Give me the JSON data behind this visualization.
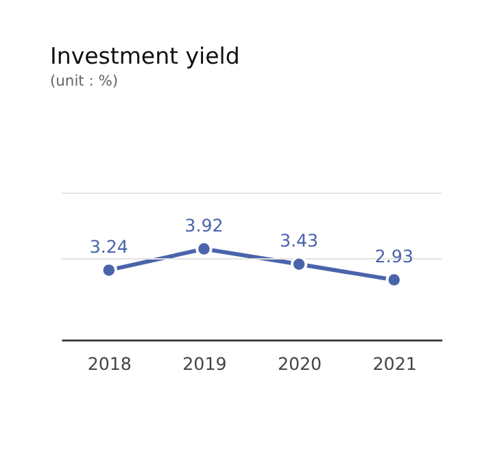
{
  "chart_data": {
    "type": "line",
    "title": "Investment yield",
    "subtitle": "(unit : %)",
    "categories": [
      "2018",
      "2019",
      "2020",
      "2021"
    ],
    "series": [
      {
        "color": "#4a64ab",
        "values": [
          3.24,
          3.92,
          3.43,
          2.93
        ]
      }
    ],
    "data_labels": true,
    "marker": "circle",
    "line_style": "solid",
    "tick_labels": "x",
    "legend": false,
    "ref_lines": [
      {
        "axis": "y",
        "value": 3.6,
        "color": "#e2e2e2"
      },
      {
        "axis": "y",
        "value": 5.7,
        "color": "#e2e2e2"
      }
    ]
  }
}
